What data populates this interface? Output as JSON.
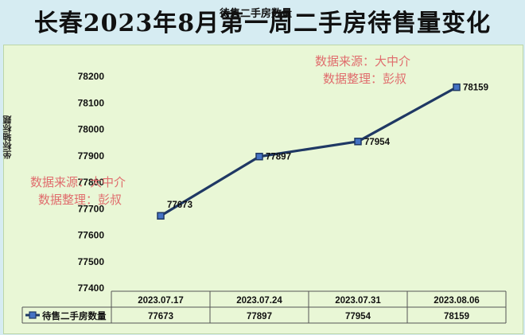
{
  "banner": {
    "title": "长春2023年8月第一周二手房待售量变化"
  },
  "watermark": {
    "line1": "数据来源：大中介",
    "line2": "数据整理：彭叔"
  },
  "colors": {
    "line": "#1f3864",
    "marker_fill": "#4472c4",
    "plot_bg": "#e9f7d6",
    "page_bg": "#d6ecf2",
    "watermark": "#e06d6d"
  },
  "chart_data": {
    "type": "line",
    "title": "待售二手房数量",
    "xlabel": "",
    "ylabel": "坐标轴标题",
    "categories": [
      "2023.07.17",
      "2023.07.24",
      "2023.07.31",
      "2023.08.06"
    ],
    "series": [
      {
        "name": "待售二手房数量",
        "values": [
          77673,
          77897,
          77954,
          78159
        ]
      }
    ],
    "ylim": [
      77400,
      78200
    ],
    "yticks": [
      "77400",
      "77500",
      "77600",
      "77700",
      "77800",
      "77900",
      "78000",
      "78100",
      "78200"
    ],
    "data_labels": [
      "77673",
      "77897",
      "77954",
      "78159"
    ],
    "grid": false,
    "legend": "data-table"
  }
}
